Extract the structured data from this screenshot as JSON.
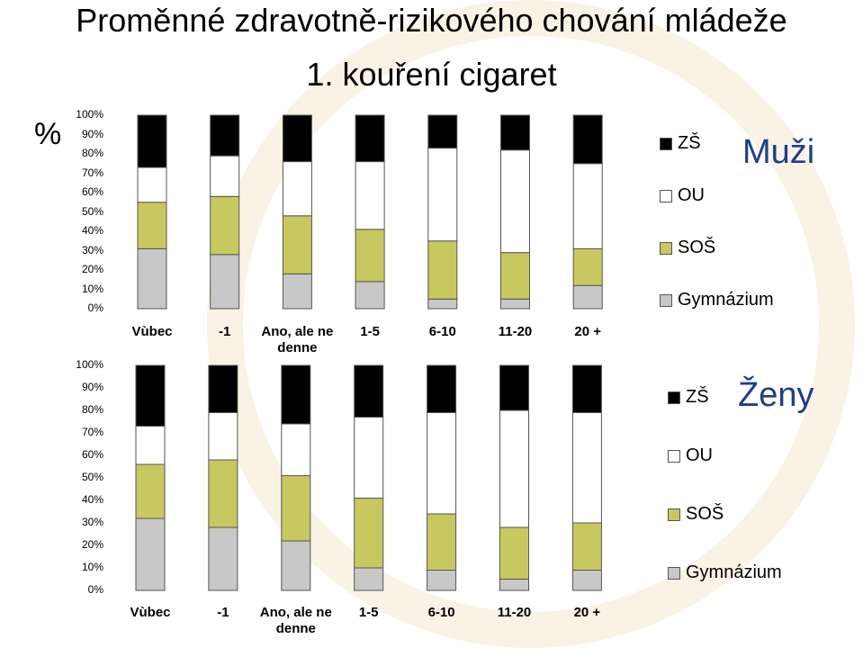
{
  "title_line1": "Proměnné zdravotně-rizikového chování mládeže",
  "title_line2": "1. kouření cigaret",
  "y_unit": "%",
  "y_ticks": [
    "100%",
    "90%",
    "80%",
    "70%",
    "60%",
    "50%",
    "40%",
    "30%",
    "20%",
    "10%",
    "0%"
  ],
  "colors": {
    "ZŠ": "#000000",
    "OU": "#ffffff",
    "SOŠ": "#c8c860",
    "Gymnázium": "#c8c8c8"
  },
  "chart_data": [
    {
      "type": "bar",
      "stacked": true,
      "title": "Muži",
      "categories": [
        "Vùbec",
        "-1",
        "Ano, ale ne denne",
        "1-5",
        "6-10",
        "11-20",
        "20 +"
      ],
      "series": [
        {
          "name": "Gymnázium",
          "values": [
            31,
            28,
            18,
            14,
            5,
            5,
            12
          ]
        },
        {
          "name": "SOŠ",
          "values": [
            24,
            30,
            30,
            27,
            30,
            24,
            19
          ]
        },
        {
          "name": "OU",
          "values": [
            18,
            21,
            28,
            35,
            48,
            53,
            44
          ]
        },
        {
          "name": "ZŠ",
          "values": [
            27,
            21,
            24,
            24,
            17,
            18,
            25
          ]
        }
      ],
      "ylim": [
        0,
        100
      ],
      "legend": "right"
    },
    {
      "type": "bar",
      "stacked": true,
      "title": "Ženy",
      "categories": [
        "Vùbec",
        "-1",
        "Ano, ale ne denne",
        "1-5",
        "6-10",
        "11-20",
        "20 +"
      ],
      "series": [
        {
          "name": "Gymnázium",
          "values": [
            32,
            28,
            22,
            10,
            9,
            5,
            9
          ]
        },
        {
          "name": "SOŠ",
          "values": [
            24,
            30,
            29,
            31,
            25,
            23,
            21
          ]
        },
        {
          "name": "OU",
          "values": [
            17,
            21,
            23,
            36,
            45,
            52,
            49
          ]
        },
        {
          "name": "ZŠ",
          "values": [
            27,
            21,
            26,
            23,
            21,
            20,
            21
          ]
        }
      ],
      "ylim": [
        0,
        100
      ],
      "legend": "right"
    }
  ]
}
